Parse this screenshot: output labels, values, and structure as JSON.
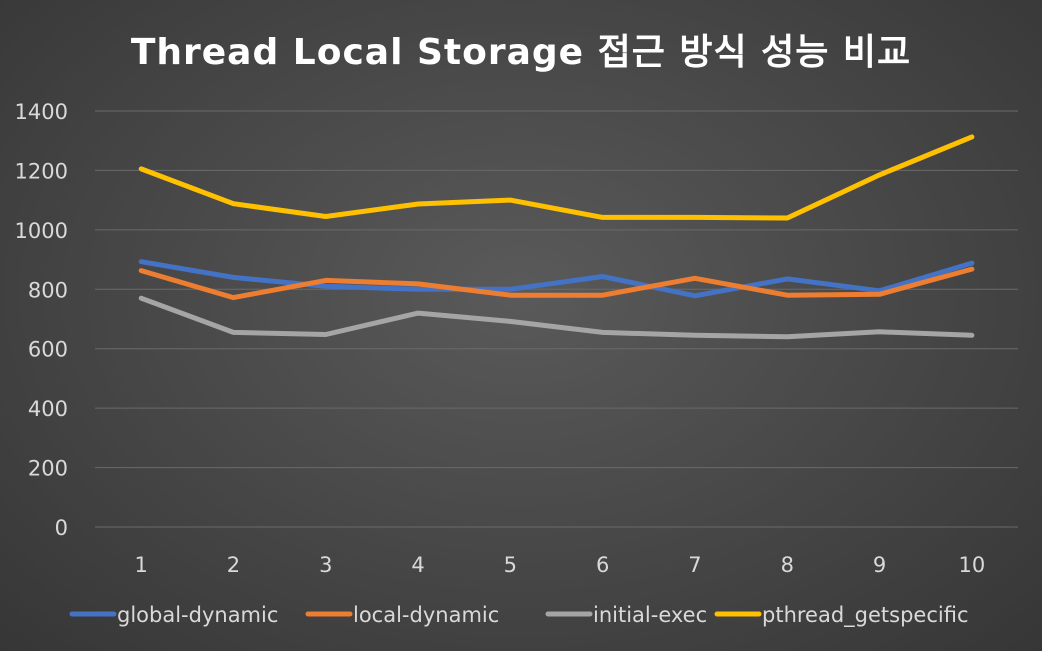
{
  "chart_data": {
    "type": "line",
    "title": "Thread Local Storage 접근 방식 성능 비교",
    "xlabel": "",
    "ylabel": "",
    "categories": [
      "1",
      "2",
      "3",
      "4",
      "5",
      "6",
      "7",
      "8",
      "9",
      "10"
    ],
    "ylim": [
      0,
      1400
    ],
    "yticks": [
      "0",
      "200",
      "400",
      "600",
      "800",
      "1000",
      "1200",
      "1400"
    ],
    "grid": true,
    "legend": "bottom",
    "series": [
      {
        "name": "global-dynamic",
        "color": "#4472C4",
        "values": [
          893,
          840,
          810,
          800,
          800,
          843,
          778,
          835,
          795,
          888
        ]
      },
      {
        "name": "local-dynamic",
        "color": "#ED7D31",
        "values": [
          863,
          772,
          830,
          818,
          780,
          780,
          837,
          780,
          783,
          868
        ]
      },
      {
        "name": "initial-exec",
        "color": "#A5A5A5",
        "values": [
          770,
          655,
          648,
          720,
          692,
          655,
          645,
          640,
          657,
          645
        ]
      },
      {
        "name": "pthread_getspecific",
        "color": "#FFC000",
        "values": [
          1205,
          1088,
          1045,
          1087,
          1100,
          1042,
          1042,
          1040,
          1185,
          1313
        ]
      }
    ]
  }
}
